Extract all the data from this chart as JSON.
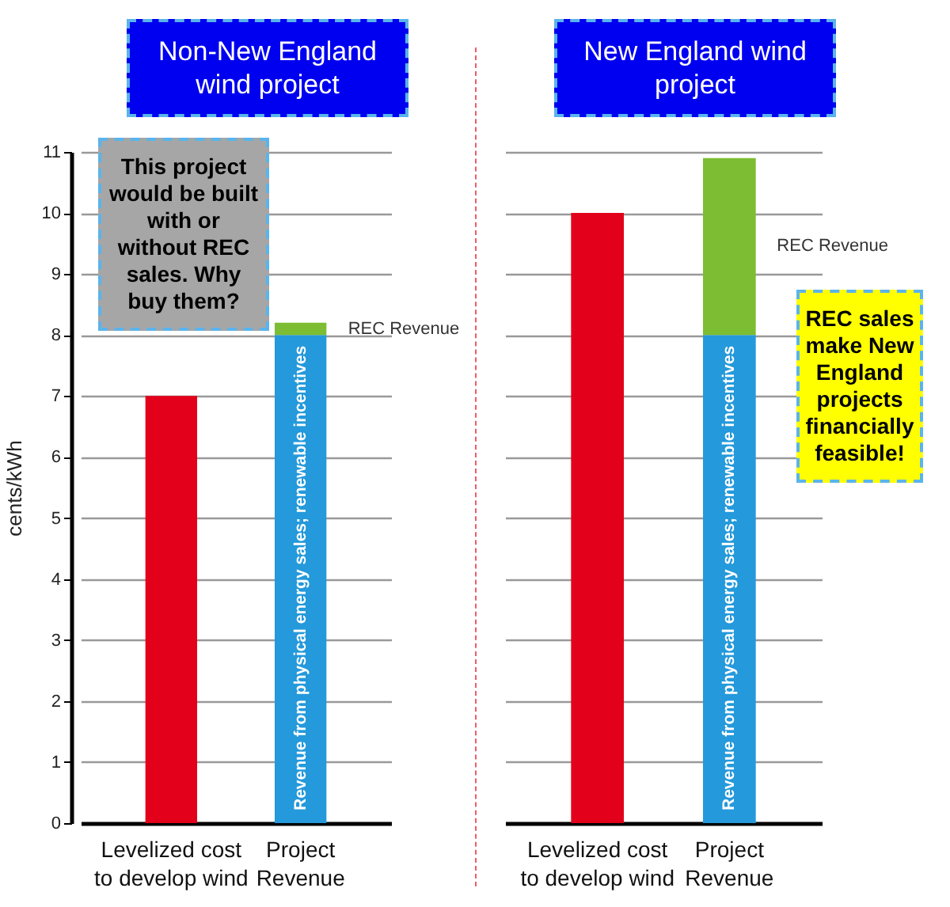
{
  "chart_data": [
    {
      "type": "bar",
      "title": "Non-New England wind project",
      "ylabel": "cents/kWh",
      "categories": [
        "Levelized cost to develop wind",
        "Project Revenue"
      ],
      "stacked": true,
      "ylim": [
        0,
        11
      ],
      "yticks": [
        0,
        1,
        2,
        3,
        4,
        5,
        6,
        7,
        8,
        9,
        10,
        11
      ],
      "grid": "y",
      "series": [
        {
          "color": "#e2001a",
          "values": [
            7,
            null
          ]
        },
        {
          "name": "Revenue from physical energy sales; renewable incentives",
          "color": "#2499db",
          "values": [
            null,
            8
          ]
        },
        {
          "name": "REC Revenue",
          "color": "#7cbd33",
          "values": [
            null,
            0.2
          ]
        }
      ],
      "annotations": [
        "This project would be built with or without REC sales. Why buy them?"
      ]
    },
    {
      "type": "bar",
      "title": "New England wind project",
      "categories": [
        "Levelized cost to develop wind",
        "Project Revenue"
      ],
      "stacked": true,
      "ylim": [
        0,
        11
      ],
      "yticks": [
        0,
        1,
        2,
        3,
        4,
        5,
        6,
        7,
        8,
        9,
        10,
        11
      ],
      "grid": "y",
      "tick_labels": "x",
      "series": [
        {
          "color": "#e2001a",
          "values": [
            10,
            null
          ]
        },
        {
          "name": "Revenue from physical energy sales; renewable incentives",
          "color": "#2499db",
          "values": [
            null,
            8
          ]
        },
        {
          "name": "REC Revenue",
          "color": "#7cbd33",
          "values": [
            null,
            2.9
          ]
        }
      ],
      "annotations": [
        "REC sales make New England projects financially feasible!"
      ]
    }
  ]
}
